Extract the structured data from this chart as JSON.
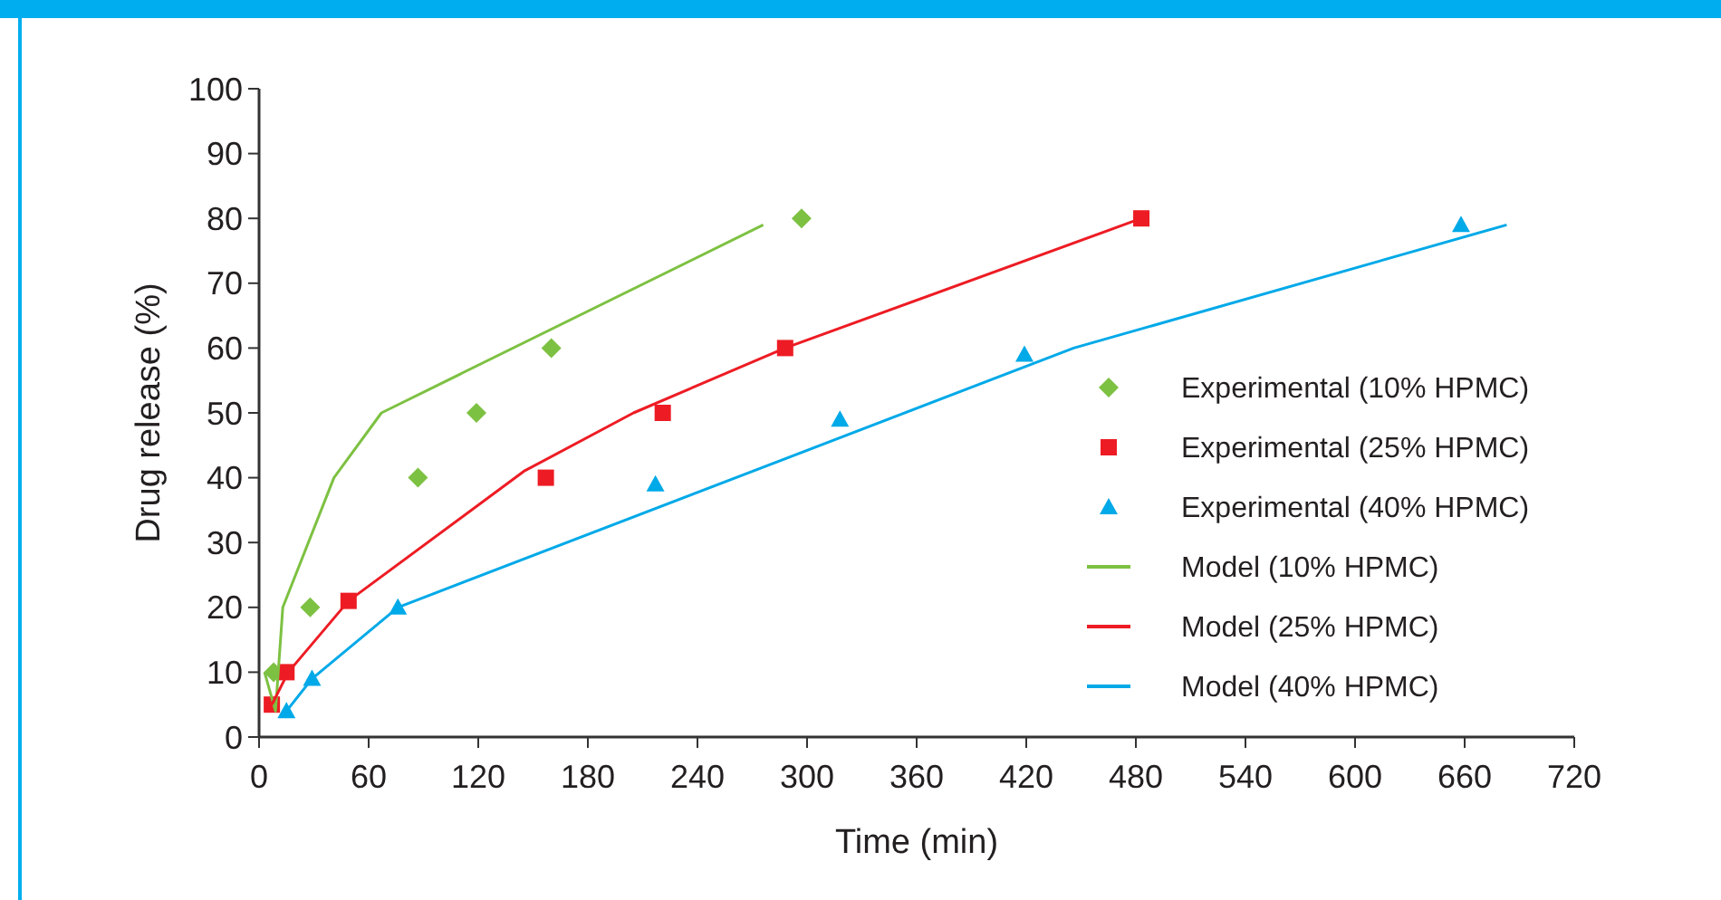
{
  "chart_data": {
    "type": "scatter",
    "xlabel": "Time (min)",
    "ylabel": "Drug release (%)",
    "xlim": [
      0,
      720
    ],
    "xticks": [
      0,
      60,
      120,
      180,
      240,
      300,
      360,
      420,
      480,
      540,
      600,
      660,
      720
    ],
    "ylim": [
      0,
      100
    ],
    "yticks": [
      0,
      10,
      20,
      30,
      40,
      50,
      60,
      70,
      80,
      90,
      100
    ],
    "grid": false,
    "legend": "right",
    "series": [
      {
        "name": "Experimental (10% HPMC)",
        "marker": "diamond",
        "color": "#7dc142",
        "x": [
          8,
          28,
          87,
          119,
          160,
          297
        ],
        "values": [
          10,
          20,
          40,
          50,
          60,
          80
        ]
      },
      {
        "name": "Experimental (25% HPMC)",
        "marker": "square",
        "color": "#ed1c24",
        "x": [
          7,
          15,
          49,
          157,
          221,
          288,
          483
        ],
        "values": [
          5,
          10,
          21,
          40,
          50,
          60,
          80
        ]
      },
      {
        "name": "Experimental (40% HPMC)",
        "marker": "triangle",
        "color": "#00a9e8",
        "x": [
          15,
          29,
          76,
          217,
          318,
          419,
          658
        ],
        "values": [
          4,
          9,
          20,
          39,
          49,
          59,
          79
        ]
      },
      {
        "name": "Model (10% HPMC)",
        "type": "line",
        "marker": "none",
        "color": "#7dc142",
        "x": [
          3,
          9,
          13,
          41,
          67,
          276
        ],
        "values": [
          10,
          4,
          20,
          40,
          50,
          79
        ]
      },
      {
        "name": "Model (25% HPMC)",
        "type": "line",
        "marker": "none",
        "color": "#ed1c24",
        "x": [
          7,
          16,
          49,
          145,
          205,
          288,
          483
        ],
        "values": [
          5,
          10,
          21,
          41,
          50,
          60,
          80
        ]
      },
      {
        "name": "Model (40% HPMC)",
        "type": "line",
        "marker": "none",
        "color": "#00a9e8",
        "x": [
          15,
          29,
          76,
          446,
          683
        ],
        "values": [
          4,
          9,
          20,
          60,
          79
        ]
      }
    ]
  }
}
